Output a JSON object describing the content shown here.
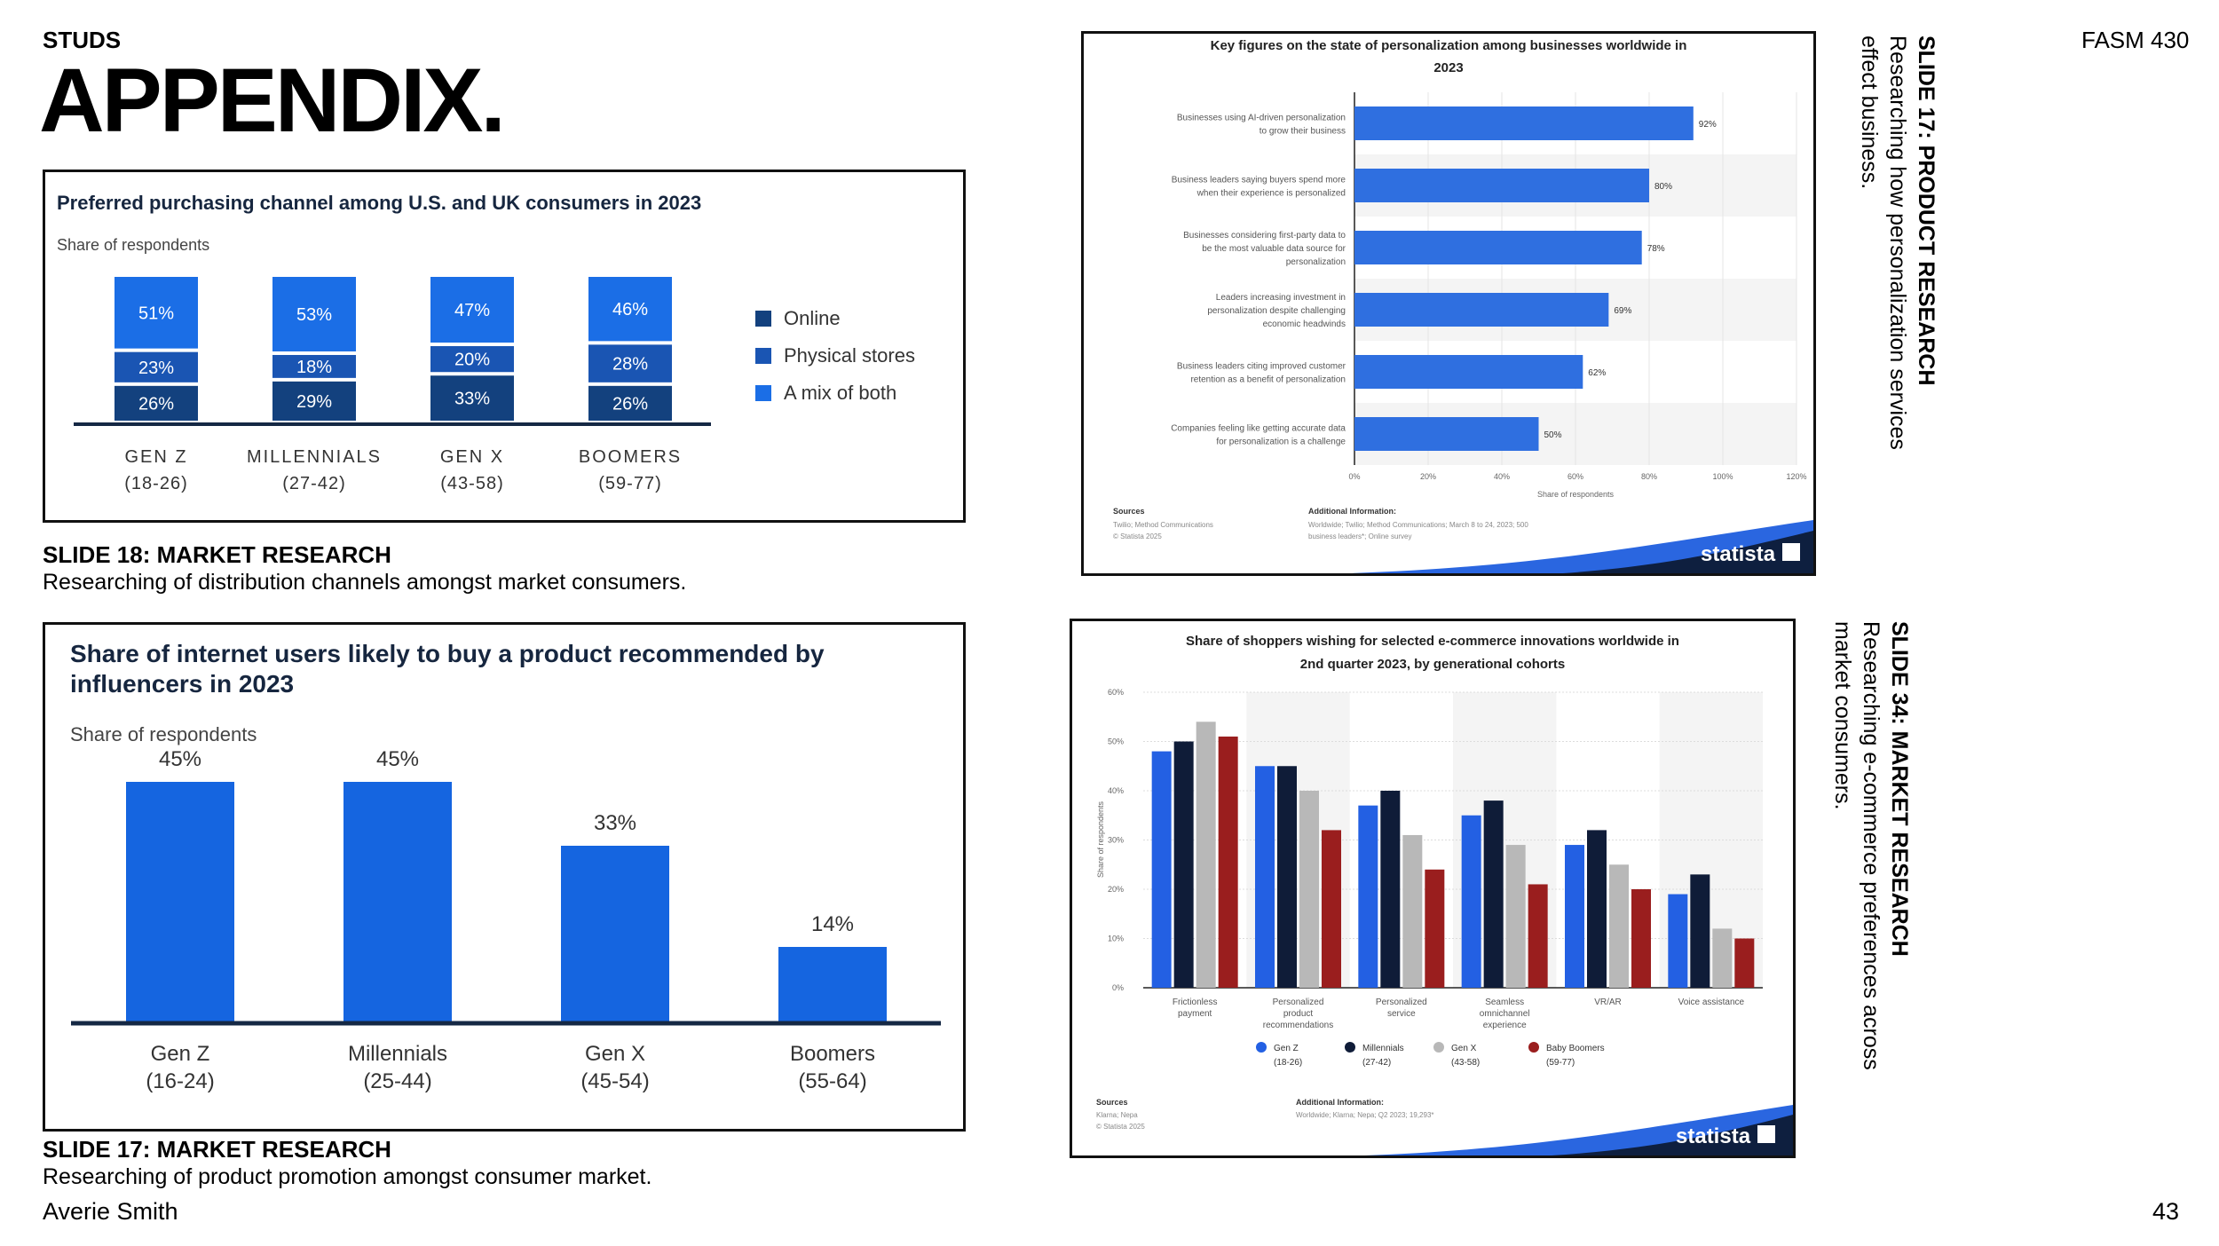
{
  "header": {
    "brand": "STUDS",
    "title": "APPENDIX.",
    "course": "FASM 430"
  },
  "footer": {
    "author": "Averie Smith",
    "page": "43"
  },
  "captions": {
    "c1_title": "SLIDE 18: MARKET RESEARCH",
    "c1_desc": "Researching of distribution channels amongst market consumers.",
    "c2_title": "SLIDE 17: MARKET RESEARCH",
    "c2_desc": "Researching of product promotion amongst consumer market.",
    "c3_title": "SLIDE 17: PRODUCT RESEARCH",
    "c3_desc": "Researching how personalization services effect business.",
    "c4_title": "SLIDE 34: MARKET RESEARCH",
    "c4_desc": "Researching e-commerce preferences across market consumers."
  },
  "colors": {
    "online": "#13417e",
    "physical": "#1a55b3",
    "mix": "#1b6ee6",
    "bar_blue": "#1565e0",
    "axis": "#152844",
    "statista_blue": "#2f6fe0",
    "genz": "#2360e3",
    "millennials": "#0f1c38",
    "genx": "#b8b8b8",
    "boomers": "#9a1e1e"
  },
  "chart_data": [
    {
      "type": "bar",
      "stacked": true,
      "title": "Preferred purchasing channel among U.S. and UK consumers in 2023",
      "subtitle": "Share of respondents",
      "categories": [
        "GEN Z",
        "MILLENNIALS",
        "GEN X",
        "BOOMERS"
      ],
      "category_ranges": [
        "(18-26)",
        "(27-42)",
        "(43-58)",
        "(59-77)"
      ],
      "series": [
        {
          "name": "Online",
          "values": [
            26,
            29,
            33,
            26
          ],
          "labels": [
            "26%",
            "29%",
            "33%",
            "26%"
          ]
        },
        {
          "name": "Physical stores",
          "values": [
            23,
            18,
            20,
            28
          ],
          "labels": [
            "23%",
            "18%",
            "20%",
            "28%"
          ]
        },
        {
          "name": "A mix of both",
          "values": [
            51,
            53,
            47,
            46
          ],
          "labels": [
            "51%",
            "53%",
            "47%",
            "46%"
          ]
        }
      ],
      "ylim": [
        0,
        100
      ]
    },
    {
      "type": "bar",
      "title": "Share of internet users likely to buy a product recommended by influencers in 2023",
      "title_lines": [
        "Share of internet users likely to buy a product recommended by",
        "influencers in 2023"
      ],
      "subtitle": "Share of respondents",
      "categories": [
        "Gen Z",
        "Millennials",
        "Gen X",
        "Boomers"
      ],
      "category_ranges": [
        "(16-24)",
        "(25-44)",
        "(45-54)",
        "(55-64)"
      ],
      "values": [
        45,
        45,
        33,
        14
      ],
      "labels": [
        "45%",
        "45%",
        "33%",
        "14%"
      ],
      "ylim": [
        0,
        50
      ]
    },
    {
      "type": "bar",
      "orientation": "horizontal",
      "title": "Key figures on the state of personalization among businesses worldwide in 2023",
      "title_lines": [
        "Key figures on the state of personalization among businesses worldwide in",
        "2023"
      ],
      "categories": [
        [
          "Businesses using AI-driven personalization",
          "to grow their business"
        ],
        [
          "Business leaders saying buyers spend more",
          "when their experience is personalized"
        ],
        [
          "Businesses considering first-party data to",
          "be the most valuable data source for",
          "personalization"
        ],
        [
          "Leaders increasing investment in",
          "personalization despite challenging",
          "economic headwinds"
        ],
        [
          "Business leaders citing improved customer",
          "retention as a benefit of personalization"
        ],
        [
          "Companies feeling like getting accurate data",
          "for personalization is a challenge"
        ]
      ],
      "values": [
        92,
        80,
        78,
        69,
        62,
        50
      ],
      "labels": [
        "92%",
        "80%",
        "78%",
        "69%",
        "62%",
        "50%"
      ],
      "xlim": [
        0,
        120
      ],
      "xticks": [
        "0%",
        "20%",
        "40%",
        "60%",
        "80%",
        "100%",
        "120%"
      ],
      "xlabel": "Share of respondents",
      "sources_title": "Sources",
      "sources": [
        "Twilio; Method Communications",
        "© Statista 2025"
      ],
      "info_title": "Additional Information:",
      "info": [
        "Worldwide; Twilio; Method Communications; March 8 to 24, 2023; 500",
        "business leaders*; Online survey"
      ],
      "brand": "statista"
    },
    {
      "type": "bar",
      "title": "Share of shoppers wishing for selected e-commerce innovations worldwide in 2nd quarter 2023, by generational cohorts",
      "title_lines": [
        "Share of shoppers wishing for selected e-commerce innovations worldwide in",
        "2nd quarter 2023, by generational cohorts"
      ],
      "categories": [
        [
          "Frictionless",
          "payment"
        ],
        [
          "Personalized",
          "product",
          "recommendations"
        ],
        [
          "Personalized",
          "service"
        ],
        [
          "Seamless",
          "omnichannel",
          "experience"
        ],
        [
          "VR/AR"
        ],
        [
          "Voice assistance"
        ]
      ],
      "series": [
        {
          "name": "Gen Z",
          "range": "(18-26)",
          "values": [
            48,
            45,
            37,
            35,
            29,
            19
          ]
        },
        {
          "name": "Millennials",
          "range": "(27-42)",
          "values": [
            50,
            45,
            40,
            38,
            32,
            23
          ]
        },
        {
          "name": "Gen X",
          "range": "(43-58)",
          "values": [
            54,
            40,
            31,
            29,
            25,
            12
          ]
        },
        {
          "name": "Baby Boomers",
          "range": "(59-77)",
          "values": [
            51,
            32,
            24,
            21,
            20,
            10
          ]
        }
      ],
      "ylim": [
        0,
        60
      ],
      "yticks": [
        "0%",
        "10%",
        "20%",
        "30%",
        "40%",
        "50%",
        "60%"
      ],
      "ylabel": "Share of respondents",
      "sources_title": "Sources",
      "sources": [
        "Klarna; Nepa",
        "© Statista 2025"
      ],
      "info_title": "Additional Information:",
      "info": [
        "Worldwide; Klarna; Nepa; Q2 2023; 19,293*"
      ],
      "brand": "statista"
    }
  ]
}
